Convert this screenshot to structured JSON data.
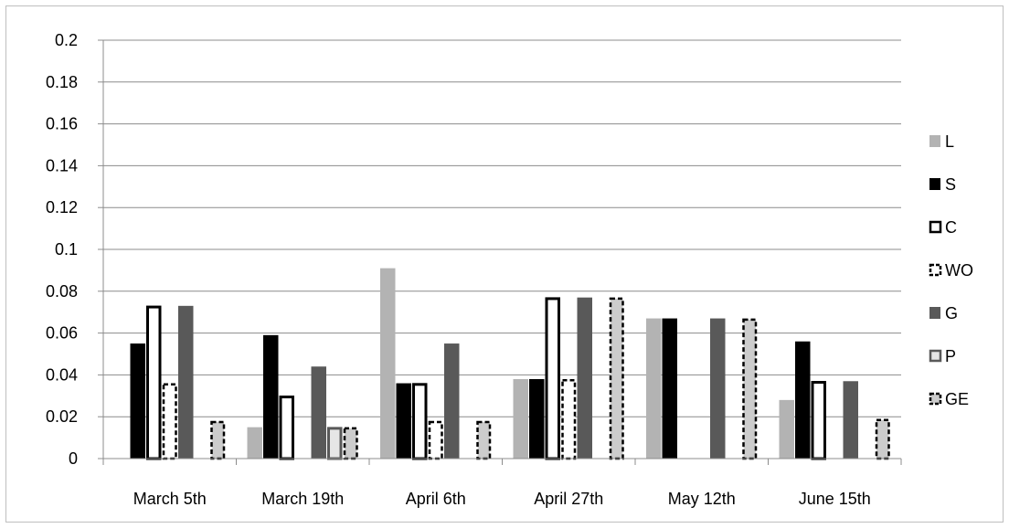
{
  "chart_data": {
    "type": "bar",
    "title": "",
    "xlabel": "",
    "ylabel": "",
    "categories": [
      "March 5th",
      "March 19th",
      "April 6th",
      "April 27th",
      "May 12th",
      "June 15th"
    ],
    "ylim": [
      0,
      0.2
    ],
    "yticks": [
      "0",
      "0.02",
      "0.04",
      "0.06",
      "0.08",
      "0.1",
      "0.12",
      "0.14",
      "0.16",
      "0.18",
      "0.2"
    ],
    "grid": true,
    "legend_position": "right",
    "series": [
      {
        "name": "L",
        "values": [
          0,
          0.015,
          0.091,
          0.038,
          0.067,
          0.028
        ],
        "fill": "#b3b3b3",
        "stroke": "none",
        "dashed": false
      },
      {
        "name": "S",
        "values": [
          0.055,
          0.059,
          0.036,
          0.038,
          0.067,
          0.056
        ],
        "fill": "#000000",
        "stroke": "none",
        "dashed": false
      },
      {
        "name": "C",
        "values": [
          0.073,
          0.03,
          0.036,
          0.077,
          0,
          0.037
        ],
        "fill": "#ffffff",
        "stroke": "#000000",
        "dashed": false
      },
      {
        "name": "WO",
        "values": [
          0.036,
          0,
          0.018,
          0.038,
          0,
          0
        ],
        "fill": "#ffffff",
        "stroke": "#000000",
        "dashed": true
      },
      {
        "name": "G",
        "values": [
          0.073,
          0.044,
          0.055,
          0.077,
          0.067,
          0.037
        ],
        "fill": "#595959",
        "stroke": "none",
        "dashed": false
      },
      {
        "name": "P",
        "values": [
          0,
          0.015,
          0,
          0,
          0,
          0
        ],
        "fill": "#e6e6e6",
        "stroke": "#595959",
        "dashed": false
      },
      {
        "name": "GE",
        "values": [
          0.018,
          0.015,
          0.018,
          0.077,
          0.067,
          0.019
        ],
        "fill": "#cccccc",
        "stroke": "#000000",
        "dashed": true
      }
    ]
  }
}
